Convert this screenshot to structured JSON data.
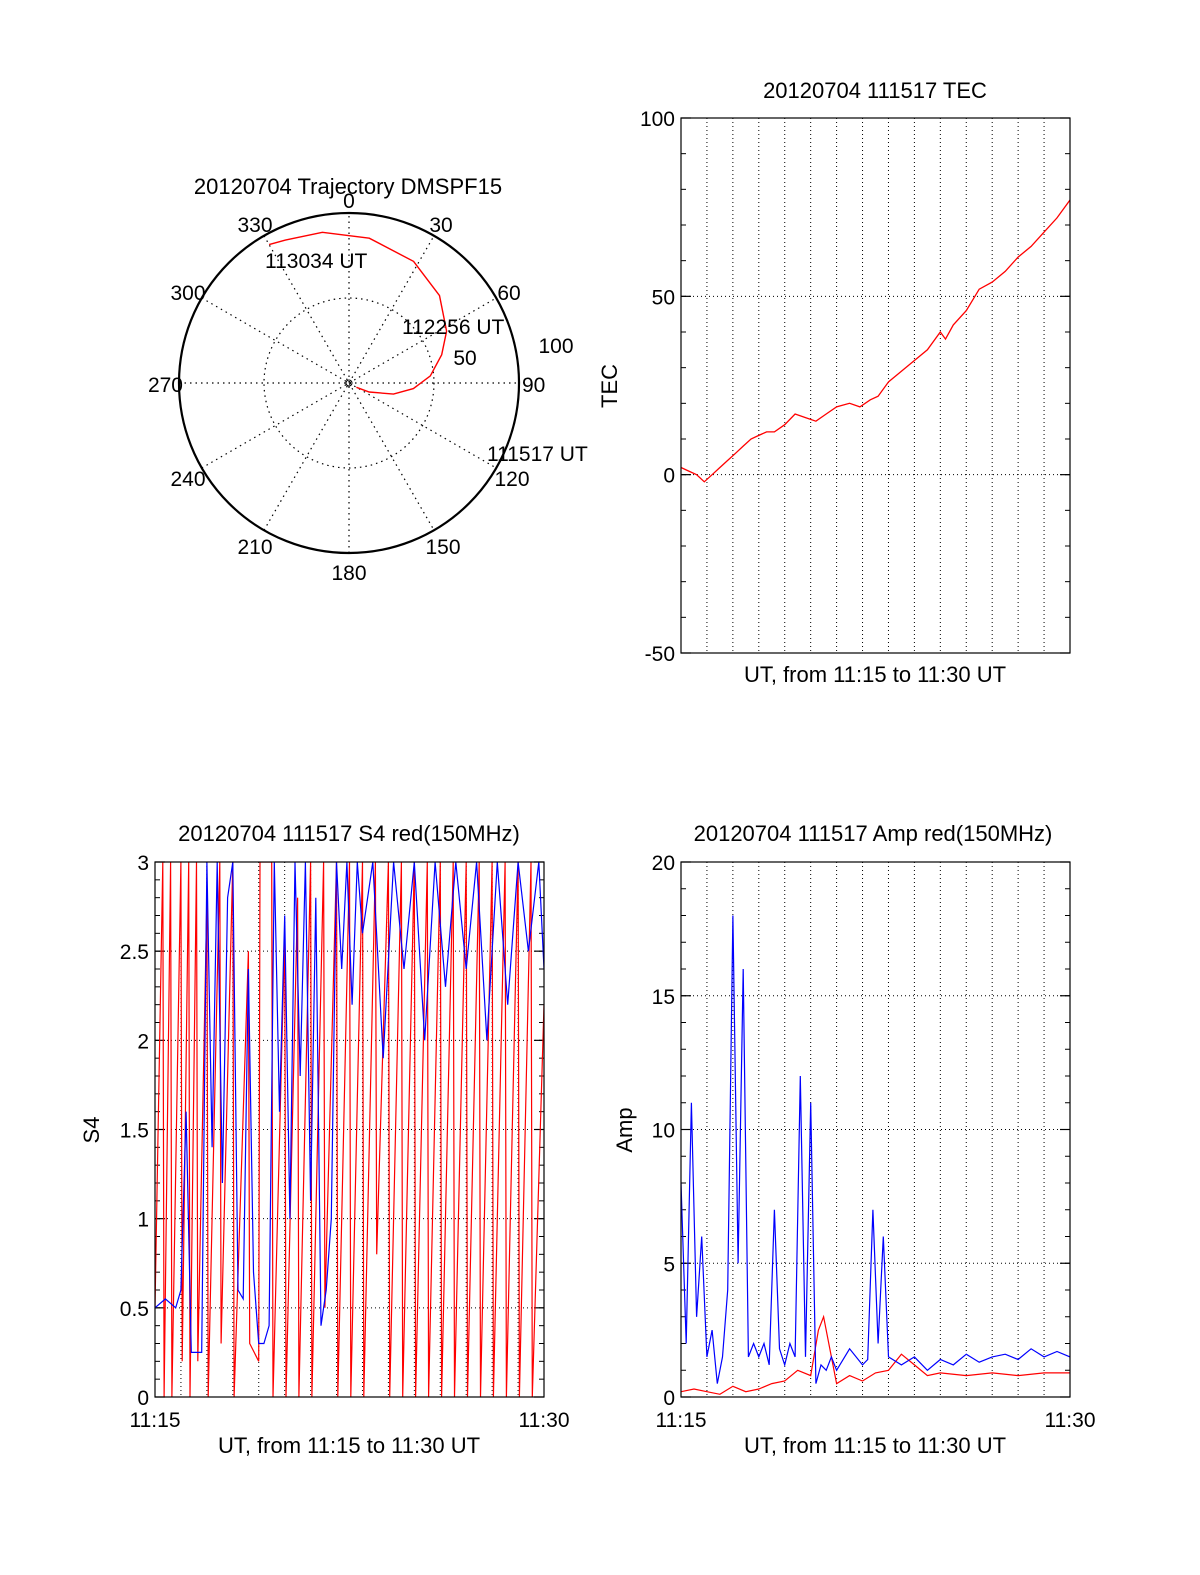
{
  "colors": {
    "red": "#ff0000",
    "blue": "#0000ff",
    "axis": "#000000",
    "grid": "#000000",
    "background": "#ffffff"
  },
  "chart_data": [
    {
      "id": "trajectory",
      "type": "polar",
      "title": "20120704 Trajectory DMSPF15",
      "azimuth_labels": [
        "0",
        "30",
        "60",
        "90",
        "120",
        "150",
        "180",
        "210",
        "240",
        "270",
        "300",
        "330"
      ],
      "elevation_ring_labels": [
        "50",
        "100"
      ],
      "grid": true,
      "series": [
        {
          "color": "red",
          "points_az_el": [
            [
              120,
              5
            ],
            [
              114,
              13
            ],
            [
              104,
              27
            ],
            [
              95,
              38
            ],
            [
              85,
              48
            ],
            [
              73,
              57
            ],
            [
              62,
              65
            ],
            [
              46,
              74
            ],
            [
              28,
              81
            ],
            [
              8,
              86
            ],
            [
              -10,
              90
            ],
            [
              -24,
              92
            ],
            [
              -30,
              94
            ]
          ]
        }
      ],
      "annotations": [
        {
          "text": "111517 UT",
          "az": 120,
          "el": 5
        },
        {
          "text": "112256 UT",
          "az": 85,
          "el": 48
        },
        {
          "text": "113034 UT",
          "az": -30,
          "el": 94
        }
      ]
    },
    {
      "id": "tec",
      "type": "line",
      "title": "20120704 111517 TEC",
      "xlabel": "UT, from 11:15 to 11:30 UT",
      "ylabel": "TEC",
      "xlim": [
        0,
        15
      ],
      "ylim": [
        -50,
        100
      ],
      "yticks": [
        "-50",
        "0",
        "50",
        "100"
      ],
      "grid": true,
      "series": [
        {
          "color": "red",
          "x": [
            0,
            0.3,
            0.6,
            0.9,
            1.2,
            1.5,
            1.8,
            2.1,
            2.4,
            2.7,
            3.0,
            3.3,
            3.6,
            4.0,
            4.4,
            4.8,
            5.2,
            5.6,
            6.0,
            6.5,
            6.9,
            7.3,
            7.6,
            8.0,
            8.5,
            9.0,
            9.5,
            10.0,
            10.2,
            10.5,
            11.0,
            11.5,
            12.0,
            12.5,
            13.0,
            13.5,
            14.0,
            14.5,
            15.0
          ],
          "y": [
            2,
            1,
            0,
            -2,
            0,
            2,
            4,
            6,
            8,
            10,
            11,
            12,
            12,
            14,
            17,
            16,
            15,
            17,
            19,
            20,
            19,
            21,
            22,
            26,
            29,
            32,
            35,
            40,
            38,
            42,
            46,
            52,
            54,
            57,
            61,
            64,
            68,
            72,
            77
          ]
        }
      ]
    },
    {
      "id": "s4",
      "type": "line",
      "title": "20120704 111517 S4 red(150MHz)",
      "xlabel": "UT, from 11:15 to 11:30 UT",
      "ylabel": "S4",
      "xticks": [
        "11:15",
        "11:30"
      ],
      "xlim": [
        0,
        15
      ],
      "ylim": [
        0,
        3
      ],
      "yticks": [
        "0",
        "0.5",
        "1",
        "1.5",
        "2",
        "2.5",
        "3"
      ],
      "grid": true,
      "series": [
        {
          "color": "red",
          "x": [
            0,
            0.3,
            0.35,
            0.6,
            0.65,
            1.0,
            1.05,
            1.3,
            1.35,
            1.6,
            1.65,
            2.0,
            2.05,
            2.5,
            2.55,
            3.0,
            3.05,
            3.6,
            3.65,
            4.0,
            4.05,
            4.5,
            4.55,
            5.0,
            5.05,
            5.5,
            5.55,
            6.0,
            6.05,
            6.5,
            6.55,
            7.0,
            7.05,
            7.5,
            7.55,
            8.0,
            8.05,
            8.5,
            8.55,
            9.0,
            9.05,
            9.5,
            9.55,
            10.0,
            10.05,
            10.5,
            10.55,
            11.0,
            11.05,
            11.5,
            11.55,
            12.0,
            12.05,
            12.5,
            12.55,
            13.0,
            13.05,
            13.5,
            13.55,
            14.0,
            14.05,
            14.5,
            14.55,
            15.0
          ],
          "y": [
            0.5,
            3,
            0,
            3,
            0,
            3,
            0.2,
            3,
            0,
            3,
            0.2,
            2.8,
            0,
            3,
            0.3,
            3,
            0,
            2.5,
            0.3,
            0.2,
            3,
            3,
            0,
            2.6,
            0,
            2.8,
            0,
            3,
            0,
            3,
            0.5,
            3,
            0,
            3,
            0,
            3,
            0,
            3,
            0.8,
            3,
            0,
            3,
            0,
            3,
            0,
            3,
            0,
            3,
            0,
            3,
            0,
            3,
            0,
            3,
            0,
            3,
            0,
            3,
            0,
            3,
            0,
            3,
            0,
            2.2
          ]
        },
        {
          "color": "blue",
          "x": [
            0,
            0.4,
            0.8,
            1.0,
            1.2,
            1.4,
            1.6,
            1.8,
            2.0,
            2.2,
            2.4,
            2.6,
            2.8,
            3.0,
            3.2,
            3.4,
            3.6,
            3.8,
            4.0,
            4.2,
            4.4,
            4.6,
            4.8,
            5.0,
            5.2,
            5.4,
            5.6,
            5.8,
            6.0,
            6.2,
            6.4,
            6.6,
            6.8,
            7.0,
            7.2,
            7.4,
            7.6,
            7.8,
            8.0,
            8.4,
            8.8,
            9.2,
            9.6,
            10.0,
            10.4,
            10.8,
            11.2,
            11.6,
            12.0,
            12.4,
            12.8,
            13.2,
            13.6,
            14.0,
            14.4,
            14.8,
            15.0
          ],
          "y": [
            0.5,
            0.55,
            0.5,
            0.6,
            1.6,
            0.25,
            0.25,
            0.25,
            3,
            1.4,
            3,
            1.2,
            2.8,
            3,
            0.6,
            0.55,
            2.4,
            0.7,
            0.3,
            0.3,
            0.4,
            3,
            1.6,
            2.7,
            1.0,
            3,
            1.8,
            3,
            1.1,
            2.8,
            0.4,
            0.6,
            1.0,
            3,
            2.4,
            3,
            2.2,
            3,
            2.6,
            3,
            1.9,
            3,
            2.4,
            3,
            2.0,
            3,
            2.3,
            3,
            2.4,
            3,
            2.0,
            3,
            2.2,
            3,
            2.5,
            3,
            2.4
          ]
        }
      ]
    },
    {
      "id": "amp",
      "type": "line",
      "title": "20120704 111517 Amp red(150MHz)",
      "xlabel": "UT, from 11:15 to 11:30 UT",
      "ylabel": "Amp",
      "xticks": [
        "11:15",
        "11:30"
      ],
      "xlim": [
        0,
        15
      ],
      "ylim": [
        0,
        20
      ],
      "yticks": [
        "0",
        "5",
        "10",
        "15",
        "20"
      ],
      "grid": true,
      "series": [
        {
          "color": "red",
          "x": [
            0,
            0.5,
            1.0,
            1.5,
            2.0,
            2.5,
            3.0,
            3.5,
            4.0,
            4.5,
            5.0,
            5.3,
            5.5,
            6.0,
            6.5,
            7.0,
            7.5,
            8.0,
            8.5,
            9.0,
            9.5,
            10.0,
            11.0,
            12.0,
            13.0,
            14.0,
            15.0
          ],
          "y": [
            0.2,
            0.3,
            0.2,
            0.1,
            0.4,
            0.2,
            0.3,
            0.5,
            0.6,
            1.0,
            0.8,
            2.5,
            3.0,
            0.5,
            0.8,
            0.6,
            0.9,
            1.0,
            1.6,
            1.2,
            0.8,
            0.9,
            0.8,
            0.9,
            0.8,
            0.9,
            0.9
          ]
        },
        {
          "color": "blue",
          "x": [
            0,
            0.2,
            0.4,
            0.6,
            0.8,
            1.0,
            1.2,
            1.4,
            1.6,
            1.8,
            2.0,
            2.2,
            2.4,
            2.6,
            2.8,
            3.0,
            3.2,
            3.4,
            3.6,
            3.8,
            4.0,
            4.2,
            4.4,
            4.6,
            4.8,
            5.0,
            5.2,
            5.4,
            5.6,
            5.8,
            6.0,
            6.5,
            7.0,
            7.2,
            7.4,
            7.6,
            7.8,
            8.0,
            8.5,
            9.0,
            9.5,
            10.0,
            10.5,
            11.0,
            11.5,
            12.0,
            12.5,
            13.0,
            13.5,
            14.0,
            14.5,
            15.0
          ],
          "y": [
            8,
            2,
            11,
            3,
            6,
            1.5,
            2.5,
            0.5,
            1.5,
            4,
            18,
            5,
            16,
            1.5,
            2,
            1.5,
            2,
            1.2,
            7,
            1.8,
            1.2,
            2,
            1.5,
            12,
            1.5,
            11,
            0.5,
            1.2,
            1.0,
            1.5,
            1.0,
            1.8,
            1.2,
            1.4,
            7,
            2,
            6,
            1.5,
            1.2,
            1.5,
            1.0,
            1.4,
            1.2,
            1.6,
            1.3,
            1.5,
            1.6,
            1.4,
            1.8,
            1.5,
            1.7,
            1.5
          ]
        }
      ]
    }
  ]
}
